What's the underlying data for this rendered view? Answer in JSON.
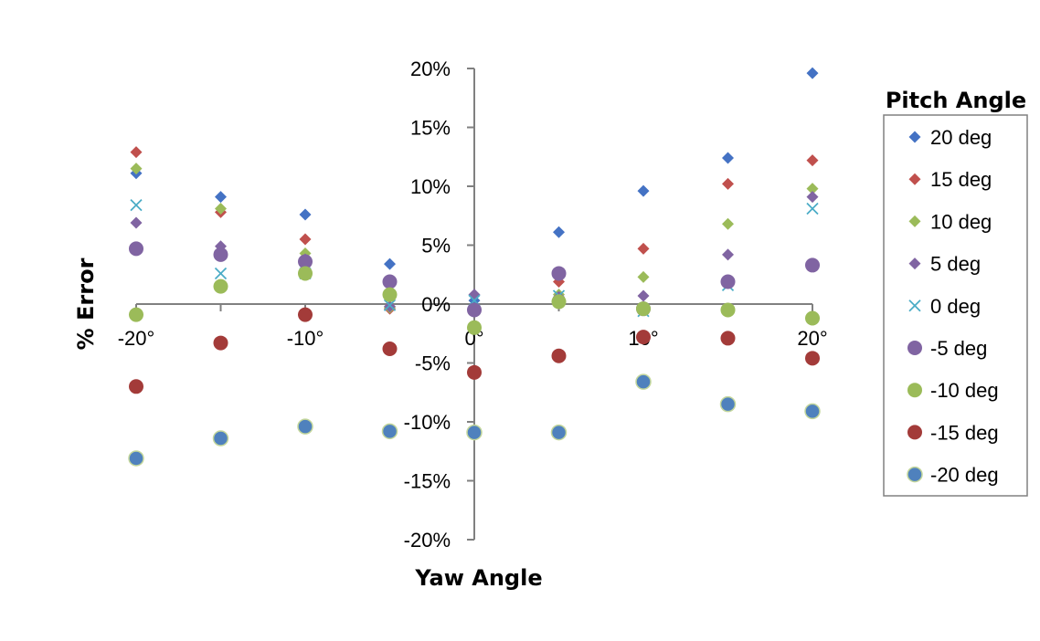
{
  "chart_data": {
    "type": "scatter",
    "title": "",
    "xlabel": "Yaw Angle",
    "ylabel": "% Error",
    "x": [
      -20,
      -15,
      -10,
      -5,
      0,
      5,
      10,
      15,
      20
    ],
    "xlim": [
      -20,
      20
    ],
    "ylim": [
      -20,
      20
    ],
    "x_ticks": [
      {
        "value": -20,
        "label": "-20°"
      },
      {
        "value": -10,
        "label": "-10°"
      },
      {
        "value": 0,
        "label": "0°"
      },
      {
        "value": 10,
        "label": "10°"
      },
      {
        "value": 20,
        "label": "20°"
      }
    ],
    "y_ticks": [
      {
        "value": 20,
        "label": "20%"
      },
      {
        "value": 15,
        "label": "15%"
      },
      {
        "value": 10,
        "label": "10%"
      },
      {
        "value": 5,
        "label": "5%"
      },
      {
        "value": 0,
        "label": "0%"
      },
      {
        "value": -5,
        "label": "-5%"
      },
      {
        "value": -10,
        "label": "-10%"
      },
      {
        "value": -15,
        "label": "-15%"
      },
      {
        "value": -20,
        "label": "-20%"
      }
    ],
    "grid": false,
    "legend_title": "Pitch Angle",
    "legend_position": "right",
    "series": [
      {
        "name": "20 deg",
        "marker": "diamond",
        "color": "#4472C4",
        "values": [
          11.1,
          9.1,
          7.6,
          3.4,
          0.3,
          6.1,
          9.6,
          12.4,
          19.6
        ]
      },
      {
        "name": "15 deg",
        "marker": "diamond",
        "color": "#C0504D",
        "values": [
          12.9,
          7.8,
          5.5,
          -0.4,
          -1.9,
          1.9,
          4.7,
          10.2,
          12.2
        ]
      },
      {
        "name": "10 deg",
        "marker": "diamond",
        "color": "#9BBB59",
        "values": [
          11.5,
          8.1,
          4.3,
          -0.3,
          -2.0,
          0.8,
          2.3,
          6.8,
          9.8
        ]
      },
      {
        "name": "5 deg",
        "marker": "diamond",
        "color": "#8064A2",
        "values": [
          6.9,
          4.9,
          3.8,
          -0.2,
          0.8,
          0.6,
          0.7,
          4.2,
          9.1
        ]
      },
      {
        "name": "0 deg",
        "marker": "x",
        "color": "#4BACC6",
        "values": [
          8.4,
          2.6,
          2.6,
          -0.1,
          0.3,
          0.7,
          -0.6,
          1.6,
          8.1
        ]
      },
      {
        "name": "-5 deg",
        "marker": "circle",
        "color": "#8064A2",
        "values": [
          4.7,
          4.2,
          3.6,
          1.9,
          -0.5,
          2.6,
          -0.4,
          1.9,
          3.3
        ]
      },
      {
        "name": "-10 deg",
        "marker": "circle",
        "color": "#9BBB59",
        "values": [
          -0.9,
          1.5,
          2.6,
          0.8,
          -2.0,
          0.2,
          -0.4,
          -0.5,
          -1.2
        ]
      },
      {
        "name": "-15 deg",
        "marker": "circle",
        "color": "#A33B39",
        "values": [
          -7.0,
          -3.3,
          -0.9,
          -3.8,
          -5.8,
          -4.4,
          -2.8,
          -2.9,
          -4.6
        ]
      },
      {
        "name": "-20 deg",
        "marker": "circle",
        "color": "#4F81BD",
        "stroke": "#C3D69B",
        "values": [
          -13.1,
          -11.4,
          -10.4,
          -10.8,
          -10.9,
          -10.9,
          -6.6,
          -8.5,
          -9.1
        ]
      }
    ]
  },
  "colors": {
    "axis": "#808080",
    "legend_border": "#808080"
  }
}
